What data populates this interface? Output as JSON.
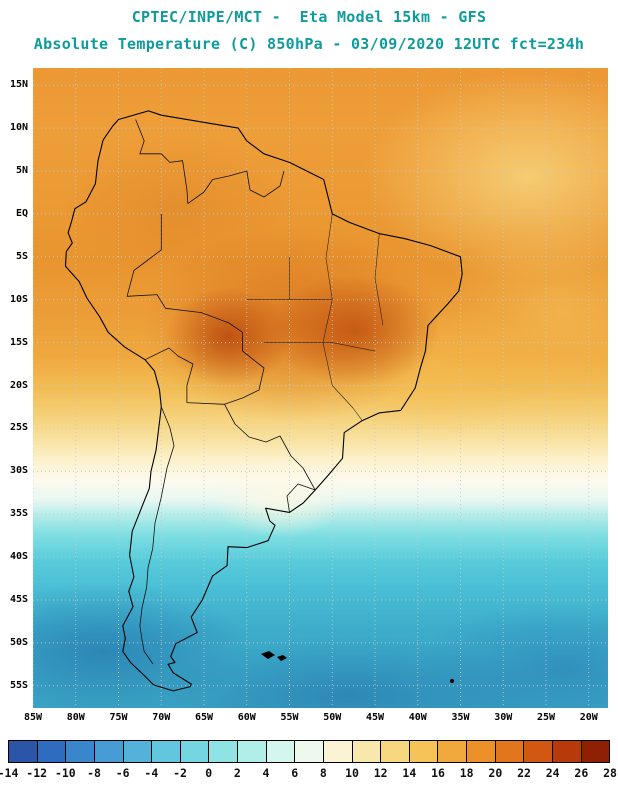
{
  "header": {
    "line1": "CPTEC/INPE/MCT -  Eta Model 15km - GFS",
    "line2": "Absolute Temperature (C) 850hPa - 03/09/2020 12UTC fct=234h"
  },
  "map": {
    "lat_labels": [
      "15N",
      "10N",
      "5N",
      "EQ",
      "5S",
      "10S",
      "15S",
      "20S",
      "25S",
      "30S",
      "35S",
      "40S",
      "45S",
      "50S",
      "55S"
    ],
    "lon_labels": [
      "85W",
      "80W",
      "75W",
      "70W",
      "65W",
      "60W",
      "55W",
      "50W",
      "45W",
      "40W",
      "35W",
      "30W",
      "25W",
      "20W"
    ]
  },
  "colorbar": {
    "tick_labels": [
      "-14",
      "-12",
      "-10",
      "-8",
      "-6",
      "-4",
      "-2",
      "0",
      "2",
      "4",
      "6",
      "8",
      "10",
      "12",
      "14",
      "16",
      "18",
      "20",
      "22",
      "24",
      "26",
      "28"
    ],
    "cell_colors": [
      "#2b56a8",
      "#2f6cc0",
      "#3a86cc",
      "#479cd6",
      "#54b2da",
      "#62c6de",
      "#74d6e0",
      "#8ee4e4",
      "#b0efe9",
      "#d4f6ef",
      "#eef9ee",
      "#fbf4d4",
      "#f9e8ac",
      "#f8d87e",
      "#f5c357",
      "#f1a93b",
      "#ec9028",
      "#e2761c",
      "#d25812",
      "#b83a0a",
      "#8f2004"
    ]
  },
  "colors": {
    "title_text": "#0f9b9b",
    "axis_text": "#000000",
    "grid_line": "#c8c8c8",
    "coastline": "#000000"
  }
}
